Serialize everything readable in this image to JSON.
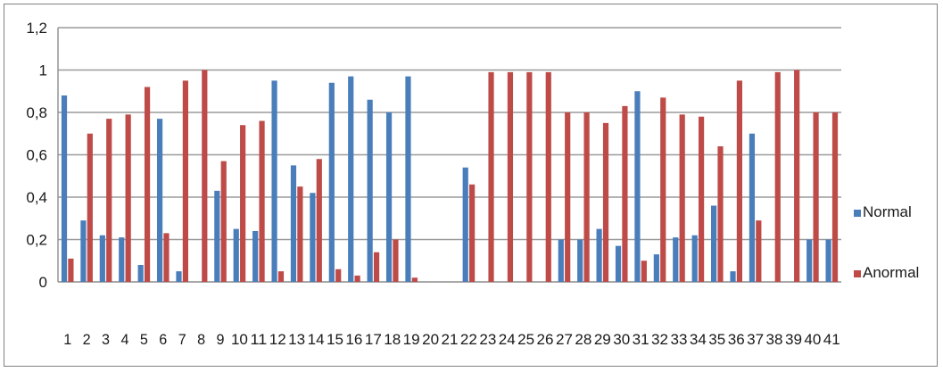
{
  "chart_data": {
    "type": "bar",
    "categories": [
      "1",
      "2",
      "3",
      "4",
      "5",
      "6",
      "7",
      "8",
      "9",
      "10",
      "11",
      "12",
      "13",
      "14",
      "15",
      "16",
      "17",
      "18",
      "19",
      "20",
      "21",
      "22",
      "23",
      "24",
      "25",
      "26",
      "27",
      "28",
      "29",
      "30",
      "31",
      "32",
      "33",
      "34",
      "35",
      "36",
      "37",
      "38",
      "39",
      "40",
      "41"
    ],
    "series": [
      {
        "name": "Normal",
        "color": "#4a7ebb",
        "values": [
          0.88,
          0.29,
          0.22,
          0.21,
          0.08,
          0.77,
          0.05,
          0,
          0.43,
          0.25,
          0.24,
          0.95,
          0.55,
          0.42,
          0.94,
          0.97,
          0.86,
          0.8,
          0.97,
          0,
          0,
          0.54,
          0,
          0,
          0,
          0,
          0.2,
          0.2,
          0.25,
          0.17,
          0.9,
          0.13,
          0.21,
          0.22,
          0.36,
          0.05,
          0.7,
          0,
          0,
          0.2,
          0.2
        ]
      },
      {
        "name": "Anormal",
        "color": "#be4b48",
        "values": [
          0.11,
          0.7,
          0.77,
          0.79,
          0.92,
          0.23,
          0.95,
          1.0,
          0.57,
          0.74,
          0.76,
          0.05,
          0.45,
          0.58,
          0.06,
          0.03,
          0.14,
          0.2,
          0.02,
          0,
          0,
          0.46,
          0.99,
          0.99,
          0.99,
          0.99,
          0.8,
          0.8,
          0.75,
          0.83,
          0.1,
          0.87,
          0.79,
          0.78,
          0.64,
          0.95,
          0.29,
          0.99,
          1.0,
          0.8,
          0.8
        ]
      }
    ],
    "yticks": [
      "0",
      "0,2",
      "0,4",
      "0,6",
      "0,8",
      "1",
      "1,2"
    ],
    "ylim": [
      0,
      1.2
    ],
    "grid": true,
    "legend_position": "right"
  }
}
